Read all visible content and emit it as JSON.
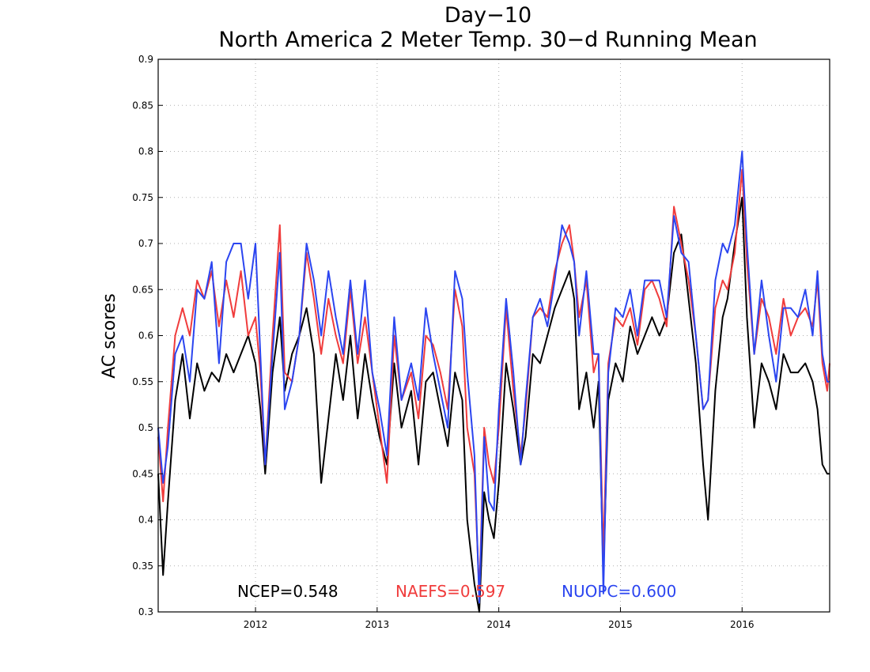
{
  "chart_data": {
    "type": "line",
    "title": "Day−10",
    "subtitle": "North America 2 Meter Temp. 30−d Running Mean",
    "ylabel": "AC scores",
    "xlabel": "",
    "xlim": [
      2011.2,
      2016.72
    ],
    "ylim": [
      0.3,
      0.9
    ],
    "yticks": [
      0.3,
      0.35,
      0.4,
      0.45,
      0.5,
      0.55,
      0.6,
      0.65,
      0.7,
      0.75,
      0.8,
      0.85,
      0.9
    ],
    "ytick_labels": [
      "0.3",
      "0.35",
      "0.4",
      "0.45",
      "0.5",
      "0.55",
      "0.6",
      "0.65",
      "0.7",
      "0.75",
      "0.8",
      "0.85",
      "0.9"
    ],
    "xticks": [
      2012,
      2013,
      2014,
      2015,
      2016
    ],
    "xtick_labels": [
      "2012",
      "2013",
      "2014",
      "2015",
      "2016"
    ],
    "grid": true,
    "legend_placement": "bottom",
    "series": [
      {
        "name": "NCEP",
        "legend": "NCEP=0.548",
        "color": "#000000",
        "x": [
          2011.2,
          2011.24,
          2011.28,
          2011.34,
          2011.4,
          2011.46,
          2011.52,
          2011.58,
          2011.64,
          2011.7,
          2011.76,
          2011.82,
          2011.88,
          2011.94,
          2012.0,
          2012.04,
          2012.08,
          2012.14,
          2012.2,
          2012.24,
          2012.3,
          2012.36,
          2012.42,
          2012.48,
          2012.54,
          2012.6,
          2012.66,
          2012.72,
          2012.78,
          2012.84,
          2012.9,
          2012.96,
          2013.02,
          2013.08,
          2013.14,
          2013.2,
          2013.28,
          2013.34,
          2013.4,
          2013.46,
          2013.52,
          2013.58,
          2013.64,
          2013.7,
          2013.74,
          2013.8,
          2013.84,
          2013.88,
          2013.92,
          2013.96,
          2014.0,
          2014.06,
          2014.12,
          2014.18,
          2014.22,
          2014.28,
          2014.34,
          2014.4,
          2014.46,
          2014.52,
          2014.58,
          2014.62,
          2014.66,
          2014.72,
          2014.78,
          2014.82,
          2014.86,
          2014.9,
          2014.96,
          2015.02,
          2015.08,
          2015.14,
          2015.2,
          2015.26,
          2015.32,
          2015.38,
          2015.44,
          2015.5,
          2015.56,
          2015.62,
          2015.68,
          2015.72,
          2015.78,
          2015.84,
          2015.88,
          2015.94,
          2016.0,
          2016.04,
          2016.1,
          2016.16,
          2016.22,
          2016.28,
          2016.34,
          2016.4,
          2016.46,
          2016.52,
          2016.58,
          2016.62,
          2016.66,
          2016.7,
          2016.72
        ],
        "y": [
          0.45,
          0.34,
          0.42,
          0.53,
          0.58,
          0.51,
          0.57,
          0.54,
          0.56,
          0.55,
          0.58,
          0.56,
          0.58,
          0.6,
          0.57,
          0.52,
          0.45,
          0.56,
          0.62,
          0.54,
          0.58,
          0.6,
          0.63,
          0.58,
          0.44,
          0.51,
          0.58,
          0.53,
          0.6,
          0.51,
          0.58,
          0.53,
          0.49,
          0.46,
          0.57,
          0.5,
          0.54,
          0.46,
          0.55,
          0.56,
          0.52,
          0.48,
          0.56,
          0.53,
          0.4,
          0.33,
          0.29,
          0.43,
          0.4,
          0.38,
          0.44,
          0.57,
          0.52,
          0.46,
          0.49,
          0.58,
          0.57,
          0.6,
          0.63,
          0.65,
          0.67,
          0.64,
          0.52,
          0.56,
          0.5,
          0.55,
          0.34,
          0.53,
          0.57,
          0.55,
          0.61,
          0.58,
          0.6,
          0.62,
          0.6,
          0.62,
          0.69,
          0.71,
          0.64,
          0.57,
          0.46,
          0.4,
          0.54,
          0.62,
          0.64,
          0.7,
          0.75,
          0.62,
          0.5,
          0.57,
          0.55,
          0.52,
          0.58,
          0.56,
          0.56,
          0.57,
          0.55,
          0.52,
          0.46,
          0.45,
          0.45
        ]
      },
      {
        "name": "NAEFS",
        "legend": "NAEFS=0.597",
        "color": "#f03c3c",
        "x": [
          2011.2,
          2011.24,
          2011.28,
          2011.34,
          2011.4,
          2011.46,
          2011.52,
          2011.58,
          2011.64,
          2011.7,
          2011.76,
          2011.82,
          2011.88,
          2011.94,
          2012.0,
          2012.04,
          2012.08,
          2012.14,
          2012.2,
          2012.24,
          2012.3,
          2012.36,
          2012.42,
          2012.48,
          2012.54,
          2012.6,
          2012.66,
          2012.72,
          2012.78,
          2012.84,
          2012.9,
          2012.96,
          2013.02,
          2013.08,
          2013.14,
          2013.2,
          2013.28,
          2013.34,
          2013.4,
          2013.46,
          2013.52,
          2013.58,
          2013.64,
          2013.7,
          2013.74,
          2013.8,
          2013.84,
          2013.88,
          2013.92,
          2013.96,
          2014.0,
          2014.06,
          2014.12,
          2014.18,
          2014.22,
          2014.28,
          2014.34,
          2014.4,
          2014.46,
          2014.52,
          2014.58,
          2014.62,
          2014.66,
          2014.72,
          2014.78,
          2014.82,
          2014.86,
          2014.9,
          2014.96,
          2015.02,
          2015.08,
          2015.14,
          2015.2,
          2015.26,
          2015.32,
          2015.38,
          2015.44,
          2015.5,
          2015.56,
          2015.62,
          2015.68,
          2015.72,
          2015.78,
          2015.84,
          2015.88,
          2015.94,
          2016.0,
          2016.04,
          2016.1,
          2016.16,
          2016.22,
          2016.28,
          2016.34,
          2016.4,
          2016.46,
          2016.52,
          2016.58,
          2016.62,
          2016.66,
          2016.7,
          2016.72
        ],
        "y": [
          0.49,
          0.42,
          0.5,
          0.6,
          0.63,
          0.6,
          0.66,
          0.64,
          0.67,
          0.61,
          0.66,
          0.62,
          0.67,
          0.6,
          0.62,
          0.56,
          0.46,
          0.6,
          0.72,
          0.56,
          0.55,
          0.6,
          0.69,
          0.64,
          0.58,
          0.64,
          0.6,
          0.57,
          0.65,
          0.57,
          0.62,
          0.56,
          0.5,
          0.44,
          0.6,
          0.53,
          0.56,
          0.51,
          0.6,
          0.59,
          0.56,
          0.52,
          0.65,
          0.61,
          0.5,
          0.45,
          0.32,
          0.5,
          0.46,
          0.44,
          0.5,
          0.63,
          0.54,
          0.47,
          0.52,
          0.62,
          0.63,
          0.62,
          0.67,
          0.7,
          0.72,
          0.68,
          0.62,
          0.66,
          0.56,
          0.58,
          0.36,
          0.57,
          0.62,
          0.61,
          0.63,
          0.59,
          0.65,
          0.66,
          0.64,
          0.61,
          0.74,
          0.7,
          0.66,
          0.6,
          0.52,
          0.53,
          0.63,
          0.66,
          0.65,
          0.69,
          0.78,
          0.68,
          0.58,
          0.64,
          0.62,
          0.58,
          0.64,
          0.6,
          0.62,
          0.63,
          0.61,
          0.66,
          0.57,
          0.54,
          0.57
        ]
      },
      {
        "name": "NUOPC",
        "legend": "NUOPC=0.600",
        "color": "#2b45f0",
        "x": [
          2011.2,
          2011.24,
          2011.28,
          2011.34,
          2011.4,
          2011.46,
          2011.52,
          2011.58,
          2011.64,
          2011.7,
          2011.76,
          2011.82,
          2011.88,
          2011.94,
          2012.0,
          2012.04,
          2012.08,
          2012.14,
          2012.2,
          2012.24,
          2012.3,
          2012.36,
          2012.42,
          2012.48,
          2012.54,
          2012.6,
          2012.66,
          2012.72,
          2012.78,
          2012.84,
          2012.9,
          2012.96,
          2013.02,
          2013.08,
          2013.14,
          2013.2,
          2013.28,
          2013.34,
          2013.4,
          2013.46,
          2013.52,
          2013.58,
          2013.64,
          2013.7,
          2013.74,
          2013.8,
          2013.84,
          2013.88,
          2013.92,
          2013.96,
          2014.0,
          2014.06,
          2014.12,
          2014.18,
          2014.22,
          2014.28,
          2014.34,
          2014.4,
          2014.46,
          2014.52,
          2014.58,
          2014.62,
          2014.66,
          2014.72,
          2014.78,
          2014.82,
          2014.86,
          2014.9,
          2014.96,
          2015.02,
          2015.08,
          2015.14,
          2015.2,
          2015.26,
          2015.32,
          2015.38,
          2015.44,
          2015.5,
          2015.56,
          2015.62,
          2015.68,
          2015.72,
          2015.78,
          2015.84,
          2015.88,
          2015.94,
          2016.0,
          2016.04,
          2016.1,
          2016.16,
          2016.22,
          2016.28,
          2016.34,
          2016.4,
          2016.46,
          2016.52,
          2016.58,
          2016.62,
          2016.66,
          2016.7,
          2016.72
        ],
        "y": [
          0.5,
          0.44,
          0.48,
          0.58,
          0.6,
          0.55,
          0.65,
          0.64,
          0.68,
          0.57,
          0.68,
          0.7,
          0.7,
          0.64,
          0.7,
          0.58,
          0.46,
          0.58,
          0.69,
          0.52,
          0.55,
          0.6,
          0.7,
          0.66,
          0.6,
          0.67,
          0.62,
          0.58,
          0.66,
          0.58,
          0.66,
          0.56,
          0.52,
          0.47,
          0.62,
          0.53,
          0.57,
          0.53,
          0.63,
          0.58,
          0.54,
          0.5,
          0.67,
          0.64,
          0.56,
          0.47,
          0.31,
          0.49,
          0.42,
          0.41,
          0.52,
          0.64,
          0.56,
          0.46,
          0.53,
          0.62,
          0.64,
          0.61,
          0.66,
          0.72,
          0.7,
          0.68,
          0.6,
          0.67,
          0.58,
          0.58,
          0.32,
          0.56,
          0.63,
          0.62,
          0.65,
          0.6,
          0.66,
          0.66,
          0.66,
          0.62,
          0.73,
          0.69,
          0.68,
          0.6,
          0.52,
          0.53,
          0.66,
          0.7,
          0.69,
          0.72,
          0.8,
          0.7,
          0.58,
          0.66,
          0.6,
          0.55,
          0.63,
          0.63,
          0.62,
          0.65,
          0.6,
          0.67,
          0.58,
          0.55,
          0.55
        ]
      }
    ]
  }
}
